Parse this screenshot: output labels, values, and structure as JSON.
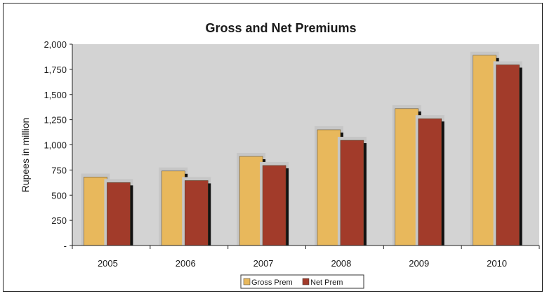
{
  "chart_data": {
    "type": "bar",
    "title": "Gross and Net Premiums",
    "xlabel": "",
    "ylabel": "Rupees in million",
    "categories": [
      "2005",
      "2006",
      "2007",
      "2008",
      "2009",
      "2010"
    ],
    "series": [
      {
        "name": "Gross Prem",
        "values": [
          680,
          740,
          885,
          1150,
          1360,
          1890
        ],
        "color": "#e8b85c"
      },
      {
        "name": "Net Prem",
        "values": [
          625,
          645,
          795,
          1045,
          1260,
          1795
        ],
        "color": "#a23b2a"
      }
    ],
    "ylim": [
      0,
      2000
    ],
    "yticks": [
      {
        "value": 0,
        "label": "-"
      },
      {
        "value": 250,
        "label": "250"
      },
      {
        "value": 500,
        "label": "500"
      },
      {
        "value": 750,
        "label": "750"
      },
      {
        "value": 1000,
        "label": "1,000"
      },
      {
        "value": 1250,
        "label": "1,250"
      },
      {
        "value": 1500,
        "label": "1,500"
      },
      {
        "value": 1750,
        "label": "1,750"
      },
      {
        "value": 2000,
        "label": "2,000"
      }
    ],
    "grid": false,
    "legend_position": "bottom",
    "plot_background": "#d3d3d3"
  }
}
